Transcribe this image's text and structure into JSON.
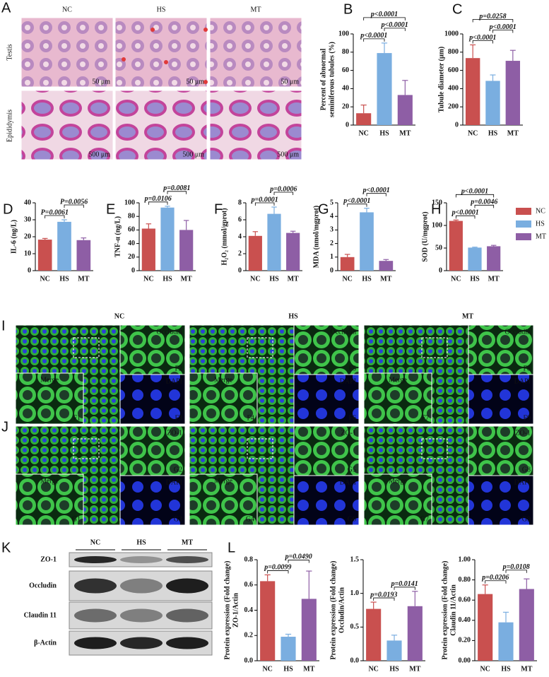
{
  "figure": {
    "panel_A": {
      "letter": "A",
      "columns": [
        "NC",
        "HS",
        "MT"
      ],
      "rows": [
        "Testis",
        "Epididymis"
      ],
      "scale_bars": [
        "50 μm",
        "500 μm"
      ]
    },
    "panel_I": {
      "letter": "I",
      "columns": [
        "NC",
        "HS",
        "MT"
      ],
      "stain": "Occludin",
      "counterstain": "DAPI",
      "merge": "Merge",
      "labels": [
        "F1",
        "F2",
        "F3",
        "F4",
        "F5",
        "F6",
        "F7",
        "F8",
        "F9"
      ]
    },
    "panel_J": {
      "letter": "J",
      "stain": "ZO-1",
      "counterstain": "DAPI",
      "merge": "Merge",
      "labels": [
        "G1",
        "G2",
        "G3",
        "G4",
        "G5",
        "G6",
        "G7",
        "G8",
        "G9"
      ]
    },
    "panel_K": {
      "letter": "K",
      "lanes": [
        "NC",
        "HS",
        "MT"
      ],
      "proteins": [
        "ZO-1",
        "Occludin",
        "Claudin 11",
        "β-Actin"
      ]
    }
  },
  "chart_data": [
    {
      "type": "bar",
      "panel": "B",
      "ylabel": [
        "Percent of abnormal",
        "seminiferous tubules (%)"
      ],
      "categories": [
        "NC",
        "HS",
        "MT"
      ],
      "colors": [
        "#c9504f",
        "#7aaee0",
        "#8e5ea5"
      ],
      "values": [
        13,
        79,
        33
      ],
      "errors": [
        9,
        11,
        16
      ],
      "ylim": [
        0,
        100
      ],
      "yticks": [
        0,
        20,
        40,
        60,
        80,
        100
      ],
      "comparisons": [
        {
          "pair": [
            "NC",
            "HS"
          ],
          "label": "p<0.0001"
        },
        {
          "pair": [
            "HS",
            "MT"
          ],
          "label": "p<0.0001"
        },
        {
          "pair": [
            "NC",
            "MT"
          ],
          "label": "p<0.0001"
        }
      ]
    },
    {
      "type": "bar",
      "panel": "C",
      "ylabel": [
        "Tubule diameter (μm)"
      ],
      "categories": [
        "NC",
        "HS",
        "MT"
      ],
      "colors": [
        "#c9504f",
        "#7aaee0",
        "#8e5ea5"
      ],
      "values": [
        735,
        485,
        705
      ],
      "errors": [
        145,
        65,
        115
      ],
      "ylim": [
        0,
        1000
      ],
      "yticks": [
        0,
        200,
        400,
        600,
        800,
        1000
      ],
      "comparisons": [
        {
          "pair": [
            "NC",
            "HS"
          ],
          "label": "p<0.0001"
        },
        {
          "pair": [
            "HS",
            "MT"
          ],
          "label": "p<0.0001"
        },
        {
          "pair": [
            "NC",
            "MT"
          ],
          "label": "p=0.0258"
        }
      ]
    },
    {
      "type": "bar",
      "panel": "D",
      "ylabel": [
        "IL-6 (ng/L)"
      ],
      "categories": [
        "NC",
        "HS",
        "MT"
      ],
      "colors": [
        "#c9504f",
        "#7aaee0",
        "#8e5ea5"
      ],
      "values": [
        18.3,
        28.8,
        18
      ],
      "errors": [
        0.7,
        1.2,
        1.3
      ],
      "ylim": [
        0,
        40
      ],
      "yticks": [
        0,
        10,
        20,
        30,
        40
      ],
      "comparisons": [
        {
          "pair": [
            "NC",
            "HS"
          ],
          "label": "P=0.0061"
        },
        {
          "pair": [
            "HS",
            "MT"
          ],
          "label": "P=0.0056"
        }
      ]
    },
    {
      "type": "bar",
      "panel": "E",
      "ylabel": [
        "TNF-α (ng/L)"
      ],
      "categories": [
        "NC",
        "HS",
        "MT"
      ],
      "colors": [
        "#c9504f",
        "#7aaee0",
        "#8e5ea5"
      ],
      "values": [
        62,
        93,
        60
      ],
      "errors": [
        7,
        2,
        14
      ],
      "ylim": [
        0,
        100
      ],
      "yticks": [
        0,
        20,
        40,
        60,
        80,
        100
      ],
      "comparisons": [
        {
          "pair": [
            "NC",
            "HS"
          ],
          "label": "p=0.0106"
        },
        {
          "pair": [
            "HS",
            "MT"
          ],
          "label": "p=0.0081"
        }
      ]
    },
    {
      "type": "bar",
      "panel": "F",
      "ylabel": [
        "H₂O₂ (mmol/gprot)"
      ],
      "categories": [
        "NC",
        "HS",
        "MT"
      ],
      "colors": [
        "#c9504f",
        "#7aaee0",
        "#8e5ea5"
      ],
      "values": [
        4.1,
        6.7,
        4.45
      ],
      "errors": [
        0.5,
        0.8,
        0.2
      ],
      "ylim": [
        0,
        8
      ],
      "yticks": [
        0,
        2,
        4,
        6,
        8
      ],
      "comparisons": [
        {
          "pair": [
            "NC",
            "HS"
          ],
          "label": "p=0.0001"
        },
        {
          "pair": [
            "HS",
            "MT"
          ],
          "label": "p=0.0006"
        }
      ]
    },
    {
      "type": "bar",
      "panel": "G",
      "ylabel": [
        "MDA (nmol/mgprot)"
      ],
      "categories": [
        "NC",
        "HS",
        "MT"
      ],
      "colors": [
        "#c9504f",
        "#7aaee0",
        "#8e5ea5"
      ],
      "values": [
        1.0,
        4.3,
        0.72
      ],
      "errors": [
        0.2,
        0.3,
        0.1
      ],
      "ylim": [
        0,
        5
      ],
      "yticks": [
        0,
        1,
        2,
        3,
        4,
        5
      ],
      "comparisons": [
        {
          "pair": [
            "NC",
            "HS"
          ],
          "label": "p<0.0001"
        },
        {
          "pair": [
            "HS",
            "MT"
          ],
          "label": "p<0.0001"
        }
      ]
    },
    {
      "type": "bar",
      "panel": "H",
      "ylabel": [
        "SOD (U/mgprot)"
      ],
      "categories": [
        "NC",
        "HS",
        "MT"
      ],
      "colors": [
        "#c9504f",
        "#7aaee0",
        "#8e5ea5"
      ],
      "values": [
        110,
        51,
        54
      ],
      "errors": [
        2,
        1,
        2
      ],
      "ylim": [
        0,
        150
      ],
      "yticks": [
        0,
        50,
        100,
        150
      ],
      "legend": "right",
      "comparisons": [
        {
          "pair": [
            "NC",
            "HS"
          ],
          "label": "p<0.0001"
        },
        {
          "pair": [
            "HS",
            "MT"
          ],
          "label": "p=0.0046"
        },
        {
          "pair": [
            "NC",
            "MT"
          ],
          "label": "p<0.0001"
        }
      ]
    },
    {
      "type": "bar",
      "panel": "L",
      "ylabel": [
        "Protein expression (Fold change)",
        "ZO-1/Actin"
      ],
      "categories": [
        "NC",
        "HS",
        "MT"
      ],
      "colors": [
        "#c9504f",
        "#7aaee0",
        "#8e5ea5"
      ],
      "values": [
        0.63,
        0.19,
        0.49
      ],
      "errors": [
        0.05,
        0.02,
        0.22
      ],
      "ylim": [
        0,
        0.8
      ],
      "yticks": [
        {
          "value": 0,
          "label": "0.0"
        },
        {
          "value": 0.2,
          "label": "0.2"
        },
        {
          "value": 0.4,
          "label": "0.4"
        },
        {
          "value": 0.6,
          "label": "0.6"
        },
        {
          "value": 0.8,
          "label": "0.8"
        }
      ],
      "comparisons": [
        {
          "pair": [
            "NC",
            "HS"
          ],
          "label": "p=0.0099"
        },
        {
          "pair": [
            "HS",
            "MT"
          ],
          "label": "p=0.0490"
        }
      ]
    },
    {
      "type": "bar",
      "ylabel": [
        "Protein expression (Fold change)",
        "Occludin/Actin"
      ],
      "categories": [
        "NC",
        "HS",
        "MT"
      ],
      "colors": [
        "#c9504f",
        "#7aaee0",
        "#8e5ea5"
      ],
      "values": [
        0.77,
        0.3,
        0.81
      ],
      "errors": [
        0.1,
        0.08,
        0.22
      ],
      "ylim": [
        0,
        1.5
      ],
      "yticks": [
        {
          "value": 0,
          "label": "0.0"
        },
        {
          "value": 0.5,
          "label": "0.5"
        },
        {
          "value": 1,
          "label": "1.0"
        },
        {
          "value": 1.5,
          "label": "1.5"
        }
      ],
      "comparisons": [
        {
          "pair": [
            "NC",
            "HS"
          ],
          "label": "p=0.0193"
        },
        {
          "pair": [
            "HS",
            "MT"
          ],
          "label": "p=0.0141"
        }
      ]
    },
    {
      "type": "bar",
      "ylabel": [
        "Protein expression (Fold change)",
        "Claudin 11/Actin"
      ],
      "categories": [
        "NC",
        "HS",
        "MT"
      ],
      "colors": [
        "#c9504f",
        "#7aaee0",
        "#8e5ea5"
      ],
      "values": [
        0.66,
        0.38,
        0.71
      ],
      "errors": [
        0.09,
        0.1,
        0.1
      ],
      "ylim": [
        0,
        1
      ],
      "yticks": [
        {
          "value": 0,
          "label": "0.00"
        },
        {
          "value": 0.2,
          "label": "0.20"
        },
        {
          "value": 0.4,
          "label": "0.40"
        },
        {
          "value": 0.6,
          "label": "0.60"
        },
        {
          "value": 0.8,
          "label": "0.80"
        },
        {
          "value": 1,
          "label": "1.00"
        }
      ],
      "comparisons": [
        {
          "pair": [
            "NC",
            "HS"
          ],
          "label": "p=0.0206"
        },
        {
          "pair": [
            "HS",
            "MT"
          ],
          "label": "p=0.0108"
        }
      ]
    }
  ]
}
